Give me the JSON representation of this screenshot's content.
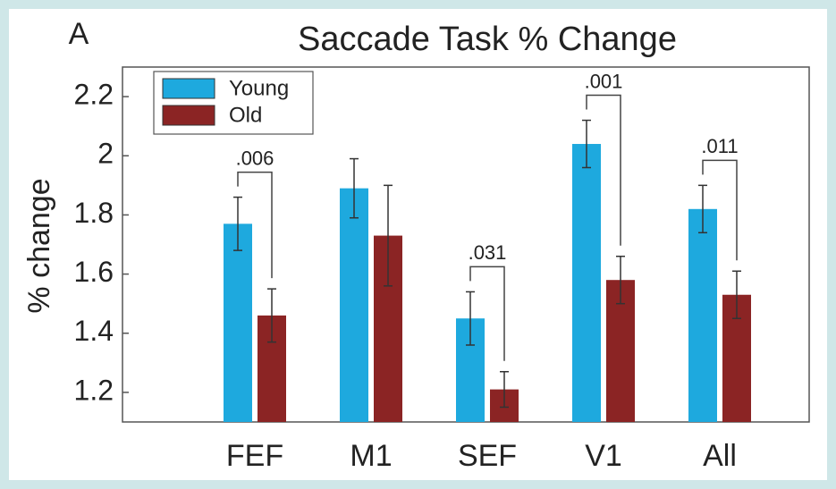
{
  "chart_data": {
    "type": "bar",
    "panel_label": "A",
    "title": "Saccade Task % Change",
    "y_label": "% change",
    "categories": [
      "FEF",
      "M1",
      "SEF",
      "V1",
      "All"
    ],
    "series": [
      {
        "name": "Young",
        "color": "#1ea9de",
        "values": [
          1.77,
          1.89,
          1.45,
          2.04,
          1.82
        ],
        "errors": [
          0.09,
          0.1,
          0.09,
          0.08,
          0.08
        ]
      },
      {
        "name": "Old",
        "color": "#8b2424",
        "values": [
          1.46,
          1.73,
          1.21,
          1.58,
          1.53
        ],
        "errors": [
          0.09,
          0.17,
          0.06,
          0.08,
          0.08
        ]
      }
    ],
    "annotations": [
      ".006",
      null,
      ".031",
      ".001",
      ".011"
    ],
    "ylim": [
      1.1,
      2.3
    ],
    "yticks": [
      1.2,
      1.4,
      1.6,
      1.8,
      2,
      2.2
    ],
    "legend": "upper left"
  }
}
